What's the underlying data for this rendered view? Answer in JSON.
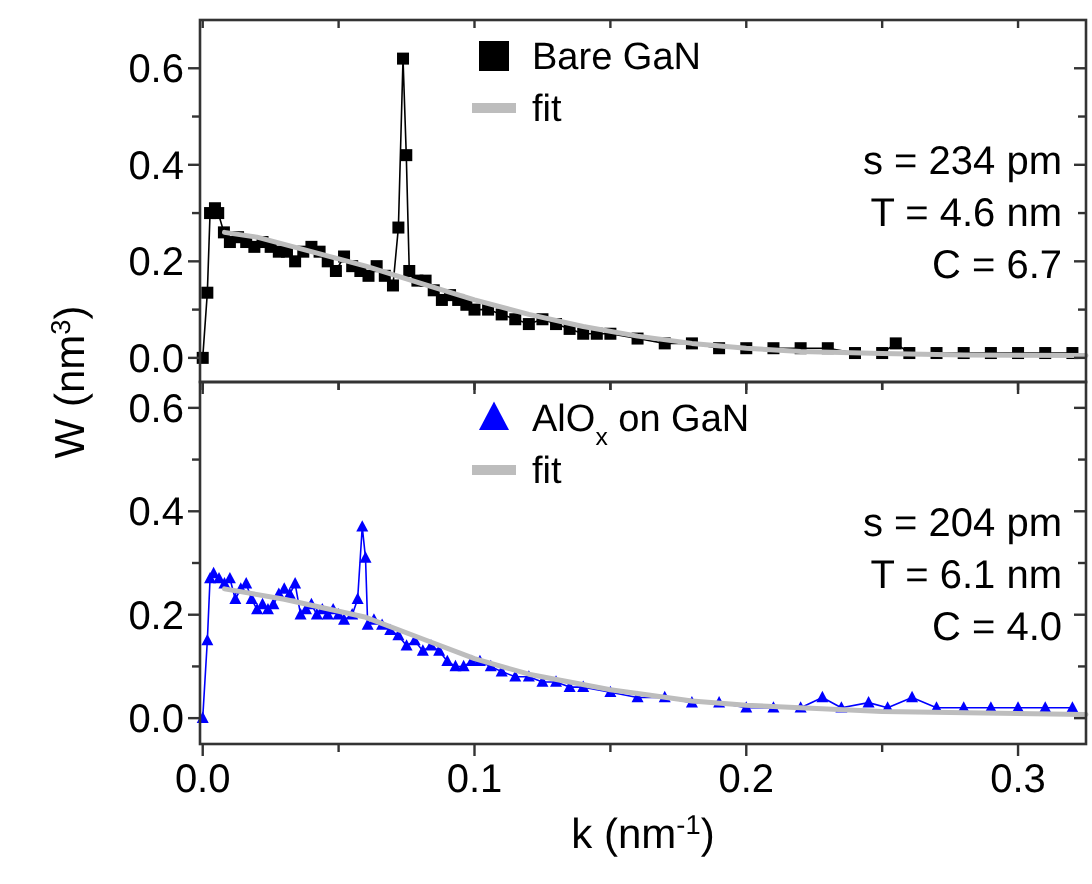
{
  "chart_data": [
    {
      "type": "line",
      "ylabel": "W (nm$^{3}$)",
      "xlim": [
        -0.001,
        0.325
      ],
      "ylim": [
        -0.05,
        0.7
      ],
      "xticks": [
        {
          "value": 0,
          "label": null
        },
        {
          "value": 0.05,
          "label": null
        },
        {
          "value": 0.1,
          "label": null
        },
        {
          "value": 0.15,
          "label": null
        },
        {
          "value": 0.2,
          "label": null
        },
        {
          "value": 0.25,
          "label": null
        },
        {
          "value": 0.3,
          "label": null
        }
      ],
      "yticks": [
        {
          "value": 0,
          "label": "0.0"
        },
        {
          "value": 0.1,
          "label": null
        },
        {
          "value": 0.2,
          "label": "0.2"
        },
        {
          "value": 0.3,
          "label": null
        },
        {
          "value": 0.4,
          "label": "0.4"
        },
        {
          "value": 0.5,
          "label": null
        },
        {
          "value": 0.6,
          "label": "0.6"
        }
      ],
      "tick_labels": "y",
      "legend": "top",
      "grid": false,
      "annotations": [
        "s = 234 pm",
        "T = 4.6 nm",
        "C = 6.7"
      ],
      "series": [
        {
          "name": "Bare GaN",
          "color": "#000000",
          "marker": "square",
          "x": [
            0,
            0.0017,
            0.0027,
            0.0045,
            0.0057,
            0.0078,
            0.01,
            0.013,
            0.016,
            0.019,
            0.022,
            0.025,
            0.028,
            0.031,
            0.034,
            0.037,
            0.04,
            0.043,
            0.046,
            0.049,
            0.052,
            0.055,
            0.058,
            0.061,
            0.064,
            0.067,
            0.07,
            0.072,
            0.0737,
            0.0749,
            0.076,
            0.079,
            0.082,
            0.085,
            0.088,
            0.091,
            0.094,
            0.097,
            0.1,
            0.105,
            0.11,
            0.115,
            0.12,
            0.125,
            0.13,
            0.135,
            0.14,
            0.145,
            0.15,
            0.16,
            0.17,
            0.18,
            0.19,
            0.2,
            0.21,
            0.22,
            0.23,
            0.24,
            0.25,
            0.255,
            0.26,
            0.27,
            0.28,
            0.29,
            0.3,
            0.31,
            0.32
          ],
          "values": [
            0,
            0.135,
            0.3,
            0.31,
            0.3,
            0.26,
            0.24,
            0.25,
            0.24,
            0.23,
            0.24,
            0.23,
            0.22,
            0.22,
            0.2,
            0.22,
            0.23,
            0.22,
            0.2,
            0.18,
            0.21,
            0.19,
            0.18,
            0.17,
            0.19,
            0.17,
            0.15,
            0.27,
            0.62,
            0.42,
            0.18,
            0.16,
            0.16,
            0.14,
            0.12,
            0.13,
            0.12,
            0.11,
            0.1,
            0.1,
            0.09,
            0.08,
            0.07,
            0.08,
            0.07,
            0.06,
            0.05,
            0.05,
            0.05,
            0.04,
            0.03,
            0.03,
            0.02,
            0.02,
            0.02,
            0.02,
            0.02,
            0.01,
            0.01,
            0.03,
            0.01,
            0.01,
            0.01,
            0.01,
            0.01,
            0.01,
            0.01
          ]
        },
        {
          "name": "fit",
          "color": "#bdbdbd",
          "x": [
            0.008,
            0.02,
            0.04,
            0.06,
            0.08,
            0.1,
            0.12,
            0.14,
            0.16,
            0.18,
            0.2,
            0.22,
            0.25,
            0.28,
            0.325
          ],
          "values": [
            0.26,
            0.25,
            0.22,
            0.19,
            0.155,
            0.12,
            0.09,
            0.065,
            0.045,
            0.03,
            0.02,
            0.013,
            0.009,
            0.006,
            0.005
          ]
        }
      ]
    },
    {
      "type": "line",
      "xlabel": "k (nm$^{-1}$)",
      "xlim": [
        -0.001,
        0.325
      ],
      "ylim": [
        -0.05,
        0.65
      ],
      "xticks": [
        {
          "value": 0,
          "label": "0.0"
        },
        {
          "value": 0.05,
          "label": null
        },
        {
          "value": 0.1,
          "label": "0.1"
        },
        {
          "value": 0.15,
          "label": null
        },
        {
          "value": 0.2,
          "label": "0.2"
        },
        {
          "value": 0.25,
          "label": null
        },
        {
          "value": 0.3,
          "label": "0.3"
        }
      ],
      "yticks": [
        {
          "value": 0,
          "label": "0.0"
        },
        {
          "value": 0.1,
          "label": null
        },
        {
          "value": 0.2,
          "label": "0.2"
        },
        {
          "value": 0.3,
          "label": null
        },
        {
          "value": 0.4,
          "label": "0.4"
        },
        {
          "value": 0.5,
          "label": null
        },
        {
          "value": 0.6,
          "label": "0.6"
        }
      ],
      "legend": "top",
      "grid": false,
      "annotations": [
        "s = 204 pm",
        "T = 6.1 nm",
        "C = 4.0"
      ],
      "series": [
        {
          "name": "AlO$_{x}$ on GaN",
          "color": "#0000ff",
          "marker": "triangle",
          "x": [
            0,
            0.0017,
            0.0027,
            0.004,
            0.006,
            0.008,
            0.01,
            0.012,
            0.014,
            0.016,
            0.018,
            0.02,
            0.022,
            0.024,
            0.026,
            0.028,
            0.03,
            0.032,
            0.034,
            0.036,
            0.038,
            0.04,
            0.042,
            0.044,
            0.046,
            0.048,
            0.05,
            0.052,
            0.055,
            0.057,
            0.0587,
            0.0599,
            0.0607,
            0.063,
            0.066,
            0.069,
            0.072,
            0.075,
            0.078,
            0.081,
            0.084,
            0.087,
            0.09,
            0.093,
            0.096,
            0.099,
            0.102,
            0.106,
            0.11,
            0.115,
            0.12,
            0.125,
            0.13,
            0.135,
            0.14,
            0.15,
            0.16,
            0.17,
            0.18,
            0.19,
            0.2,
            0.21,
            0.22,
            0.228,
            0.235,
            0.245,
            0.252,
            0.261,
            0.27,
            0.28,
            0.29,
            0.3,
            0.31,
            0.32
          ],
          "values": [
            0,
            0.15,
            0.27,
            0.28,
            0.27,
            0.26,
            0.27,
            0.23,
            0.25,
            0.26,
            0.23,
            0.21,
            0.22,
            0.21,
            0.22,
            0.24,
            0.25,
            0.24,
            0.26,
            0.2,
            0.21,
            0.22,
            0.2,
            0.21,
            0.2,
            0.21,
            0.2,
            0.19,
            0.2,
            0.23,
            0.37,
            0.31,
            0.18,
            0.19,
            0.18,
            0.17,
            0.16,
            0.14,
            0.15,
            0.13,
            0.14,
            0.13,
            0.11,
            0.1,
            0.1,
            0.11,
            0.11,
            0.1,
            0.09,
            0.08,
            0.08,
            0.07,
            0.07,
            0.06,
            0.06,
            0.05,
            0.04,
            0.04,
            0.03,
            0.03,
            0.02,
            0.02,
            0.02,
            0.04,
            0.02,
            0.03,
            0.02,
            0.04,
            0.02,
            0.02,
            0.02,
            0.02,
            0.02,
            0.02
          ]
        },
        {
          "name": "fit",
          "color": "#bdbdbd",
          "x": [
            0.008,
            0.03,
            0.06,
            0.08,
            0.1,
            0.12,
            0.15,
            0.18,
            0.2,
            0.25,
            0.325
          ],
          "values": [
            0.25,
            0.23,
            0.195,
            0.155,
            0.115,
            0.085,
            0.055,
            0.033,
            0.025,
            0.013,
            0.007
          ]
        }
      ]
    }
  ]
}
